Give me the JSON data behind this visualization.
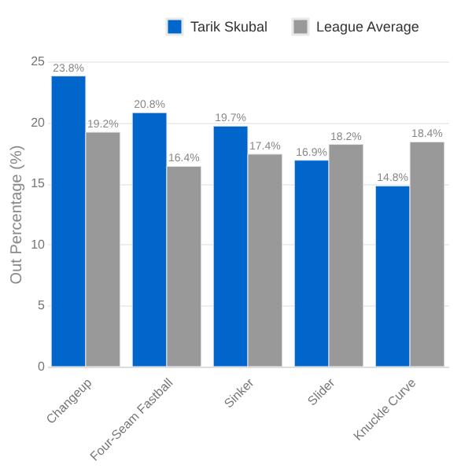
{
  "chart_data": {
    "type": "bar",
    "ylabel": "Out Percentage (%)",
    "categories": [
      "Changeup",
      "Four-Seam Fastball",
      "Sinker",
      "Slider",
      "Knuckle Curve"
    ],
    "series": [
      {
        "name": "Tarik Skubal",
        "color": "#0066cc",
        "values": [
          23.8,
          20.8,
          19.7,
          16.9,
          14.8
        ],
        "value_labels": [
          "23.8%",
          "20.8%",
          "19.7%",
          "16.9%",
          "14.8%"
        ]
      },
      {
        "name": "League Average",
        "color": "#999999",
        "values": [
          19.2,
          16.4,
          17.4,
          18.2,
          18.4
        ],
        "value_labels": [
          "19.2%",
          "16.4%",
          "17.4%",
          "18.2%",
          "18.4%"
        ]
      }
    ],
    "ylim": [
      0,
      25
    ],
    "yticks": [
      0,
      5,
      10,
      15,
      20,
      25
    ],
    "grid": "y",
    "legend": "top right"
  }
}
